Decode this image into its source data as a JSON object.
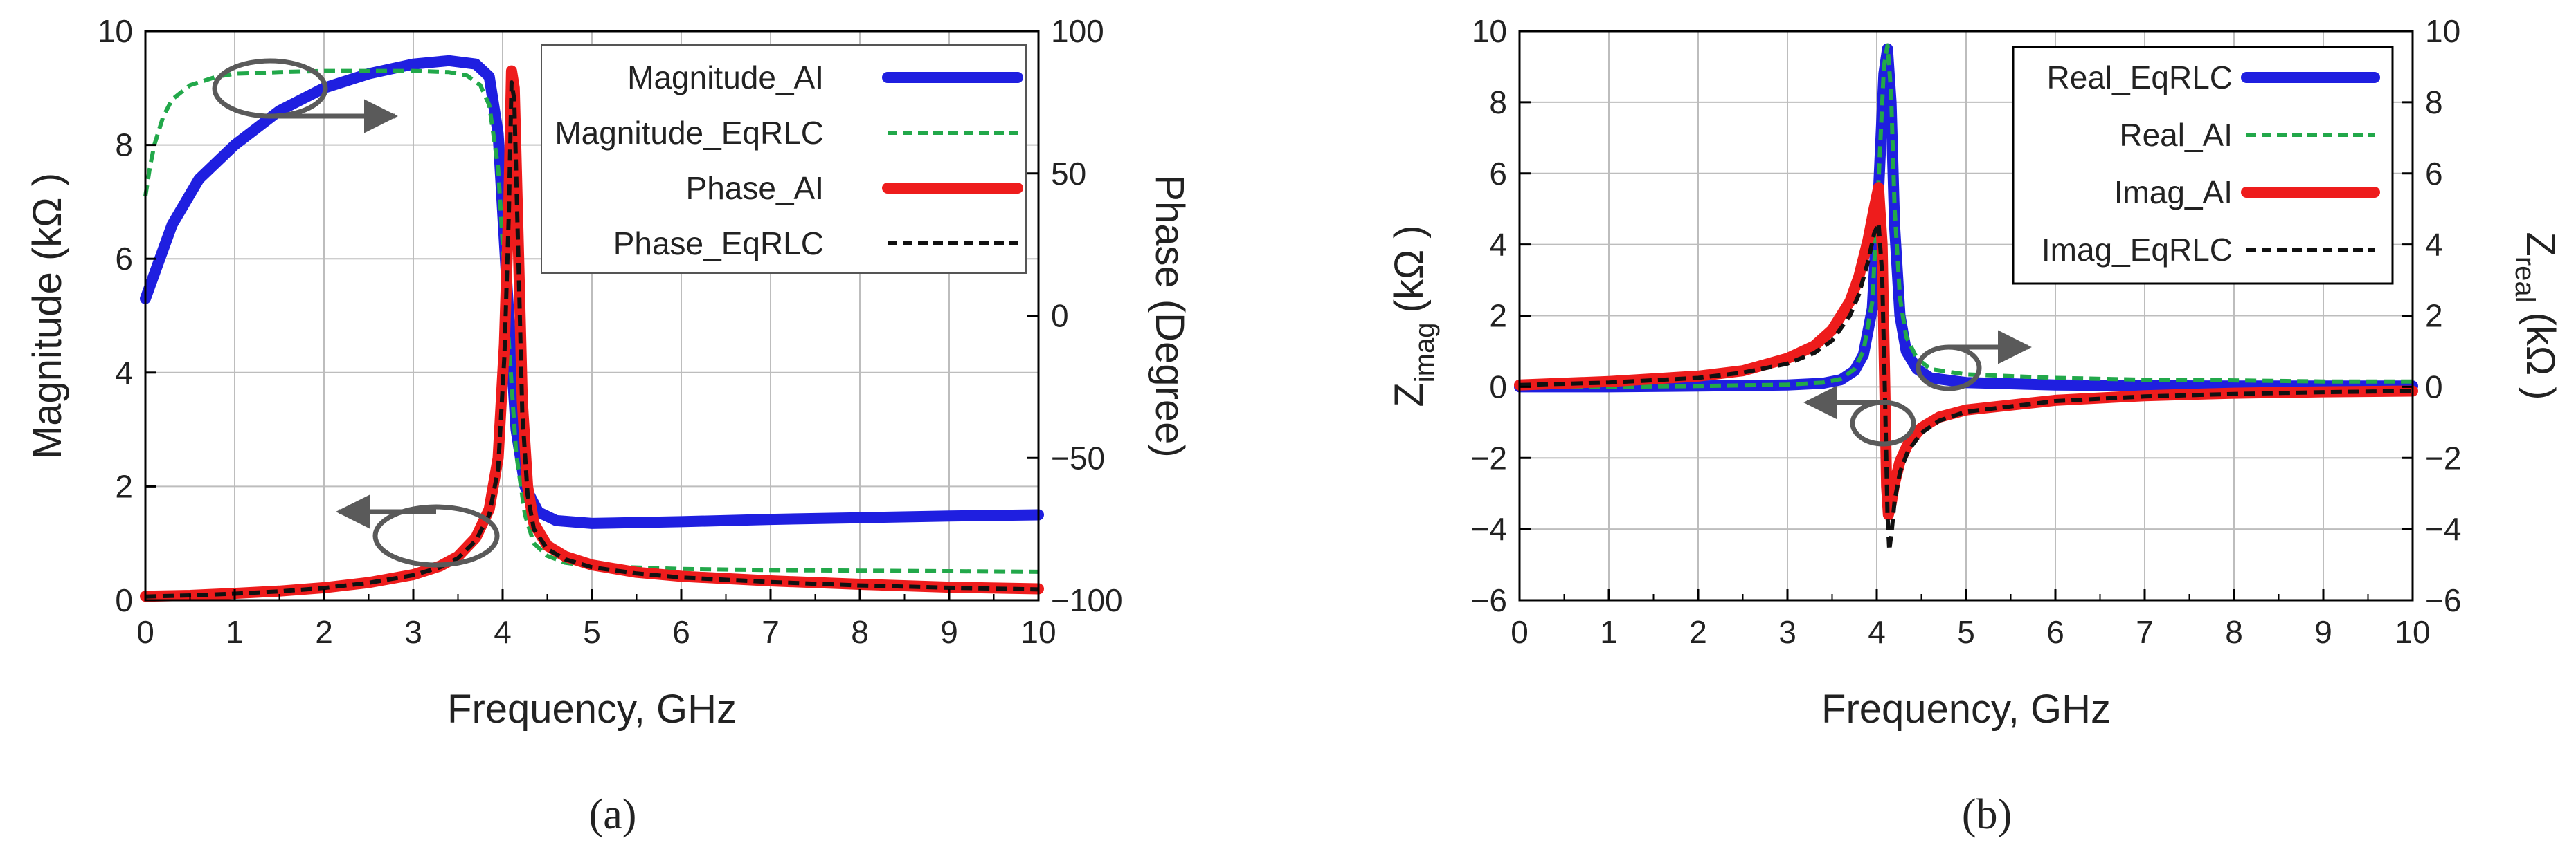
{
  "captions": [
    "(a)",
    "(b)"
  ],
  "chart_data": [
    {
      "type": "line",
      "panel": "a",
      "xlabel": "Frequency, GHz",
      "ylabel": "Magnitude (kΩ )",
      "y2label": "Phase (Degree)",
      "xlim": [
        0,
        10
      ],
      "ylim": [
        0,
        10
      ],
      "y2lim": [
        -100,
        100
      ],
      "xticks": [
        "0",
        "1",
        "2",
        "3",
        "4",
        "5",
        "6",
        "7",
        "8",
        "9",
        "10"
      ],
      "yticks": [
        "0",
        "2",
        "4",
        "6",
        "8",
        "10"
      ],
      "y2ticks": [
        "−100",
        "−50",
        "0",
        "50",
        "100"
      ],
      "grid": true,
      "legend_position": "top-right",
      "series": [
        {
          "name": "Magnitude_AI",
          "axis": "left",
          "color": "#1f1fe0",
          "style": "solid",
          "width": 16,
          "x": [
            0,
            0.3,
            0.6,
            1,
            1.5,
            2,
            2.5,
            3,
            3.4,
            3.7,
            3.85,
            3.95,
            4.05,
            4.15,
            4.25,
            4.4,
            4.6,
            5,
            6,
            7,
            8,
            9,
            10
          ],
          "y": [
            5.3,
            6.6,
            7.4,
            8.0,
            8.6,
            9.0,
            9.25,
            9.42,
            9.48,
            9.42,
            9.2,
            8.2,
            5.5,
            3.0,
            2.0,
            1.55,
            1.4,
            1.35,
            1.38,
            1.42,
            1.45,
            1.48,
            1.5
          ]
        },
        {
          "name": "Magnitude_EqRLC",
          "axis": "left",
          "color": "#22a84a",
          "style": "dashed",
          "width": 6,
          "x": [
            0,
            0.05,
            0.1,
            0.2,
            0.3,
            0.5,
            0.8,
            1,
            1.5,
            2,
            2.5,
            3,
            3.4,
            3.6,
            3.75,
            3.85,
            3.95,
            4.05,
            4.15,
            4.25,
            4.35,
            4.5,
            4.7,
            5,
            6,
            7,
            8,
            9,
            10
          ],
          "y": [
            7.1,
            7.6,
            8.0,
            8.5,
            8.8,
            9.05,
            9.2,
            9.25,
            9.28,
            9.3,
            9.3,
            9.3,
            9.28,
            9.22,
            9.05,
            8.7,
            7.6,
            5.0,
            2.6,
            1.5,
            1.0,
            0.78,
            0.66,
            0.6,
            0.55,
            0.53,
            0.52,
            0.51,
            0.5
          ]
        },
        {
          "name": "Phase_AI",
          "axis": "right",
          "color": "#ee1c1c",
          "style": "solid",
          "width": 16,
          "x": [
            0,
            0.5,
            1,
            1.5,
            2,
            2.5,
            3,
            3.3,
            3.5,
            3.7,
            3.85,
            3.95,
            4.02,
            4.07,
            4.1,
            4.13,
            4.18,
            4.22,
            4.28,
            4.35,
            4.5,
            4.7,
            5,
            5.5,
            6,
            7,
            8,
            9,
            10
          ],
          "y": [
            -98.6,
            -98.3,
            -97.6,
            -96.8,
            -95.6,
            -93.8,
            -91.0,
            -88.0,
            -84.6,
            -78.0,
            -68.0,
            -50.0,
            -10.0,
            40.0,
            86.0,
            80.0,
            20.0,
            -30.0,
            -60.0,
            -73.0,
            -80.8,
            -84.6,
            -87.6,
            -90.2,
            -91.6,
            -93.2,
            -94.4,
            -95.4,
            -96.0
          ]
        },
        {
          "name": "Phase_EqRLC",
          "axis": "right",
          "color": "#111111",
          "style": "dashed",
          "width": 6,
          "x": [
            0,
            0.5,
            1,
            1.5,
            2,
            2.5,
            3,
            3.3,
            3.5,
            3.7,
            3.85,
            3.95,
            4.02,
            4.07,
            4.1,
            4.13,
            4.18,
            4.22,
            4.28,
            4.35,
            4.5,
            4.7,
            5,
            5.5,
            6,
            7,
            8,
            9,
            10
          ],
          "y": [
            -98.7,
            -98.3,
            -97.7,
            -96.9,
            -95.7,
            -93.9,
            -91.2,
            -88.4,
            -85.2,
            -79.0,
            -70.0,
            -54.0,
            -14.0,
            36.0,
            82.0,
            76.0,
            16.0,
            -34.0,
            -63.0,
            -75.0,
            -82.0,
            -85.6,
            -88.4,
            -90.6,
            -92.0,
            -93.6,
            -94.8,
            -95.6,
            -96.2
          ]
        }
      ]
    },
    {
      "type": "line",
      "panel": "b",
      "xlabel": "Frequency, GHz",
      "ylabel_main": "Z",
      "ylabel_sub": "imag",
      "ylabel_unit": "(kΩ )",
      "y2label_main": "Z",
      "y2label_sub": "real",
      "y2label_unit": "(kΩ )",
      "xlim": [
        0,
        10
      ],
      "ylim": [
        -6,
        10
      ],
      "y2lim": [
        -6,
        10
      ],
      "xticks": [
        "0",
        "1",
        "2",
        "3",
        "4",
        "5",
        "6",
        "7",
        "8",
        "9",
        "10"
      ],
      "yticks": [
        "−6",
        "−4",
        "−2",
        "0",
        "2",
        "4",
        "6",
        "8",
        "10"
      ],
      "y2ticks": [
        "−6",
        "−4",
        "−2",
        "0",
        "2",
        "4",
        "6",
        "8",
        "10"
      ],
      "grid": true,
      "legend_position": "top-right",
      "series": [
        {
          "name": "Real_EqRLC",
          "axis": "right",
          "color": "#1f1fe0",
          "style": "solid",
          "width": 16,
          "x": [
            0,
            1,
            2,
            3,
            3.4,
            3.6,
            3.75,
            3.85,
            3.95,
            4.02,
            4.08,
            4.12,
            4.16,
            4.2,
            4.26,
            4.33,
            4.45,
            4.6,
            5,
            6,
            7,
            8,
            9,
            10
          ],
          "y": [
            0.0,
            0.0,
            0.02,
            0.05,
            0.1,
            0.2,
            0.45,
            0.9,
            2.2,
            5.5,
            8.8,
            9.5,
            8.0,
            4.5,
            2.0,
            1.0,
            0.5,
            0.25,
            0.12,
            0.05,
            0.03,
            0.02,
            0.02,
            0.02
          ]
        },
        {
          "name": "Real_AI",
          "axis": "right",
          "color": "#22a84a",
          "style": "dashed",
          "width": 6,
          "x": [
            0,
            1,
            2,
            3,
            3.4,
            3.6,
            3.75,
            3.85,
            3.95,
            4.02,
            4.08,
            4.12,
            4.16,
            4.2,
            4.26,
            4.33,
            4.45,
            4.6,
            5,
            6,
            7,
            8,
            9,
            10
          ],
          "y": [
            0.0,
            0.0,
            0.02,
            0.06,
            0.12,
            0.22,
            0.5,
            1.0,
            2.4,
            5.8,
            9.0,
            9.6,
            8.3,
            5.0,
            2.5,
            1.4,
            0.8,
            0.5,
            0.35,
            0.25,
            0.2,
            0.18,
            0.15,
            0.15
          ]
        },
        {
          "name": "Imag_AI",
          "axis": "left",
          "color": "#ee1c1c",
          "style": "solid",
          "width": 16,
          "x": [
            0,
            1,
            2,
            2.5,
            3,
            3.3,
            3.5,
            3.7,
            3.8,
            3.9,
            3.97,
            4.02,
            4.06,
            4.09,
            4.11,
            4.13,
            4.16,
            4.2,
            4.26,
            4.35,
            4.5,
            4.7,
            5,
            6,
            7,
            8,
            9,
            10
          ],
          "y": [
            0.05,
            0.15,
            0.3,
            0.45,
            0.8,
            1.15,
            1.6,
            2.4,
            3.1,
            4.1,
            5.0,
            5.6,
            4.0,
            0.0,
            -2.8,
            -3.6,
            -3.3,
            -2.7,
            -2.1,
            -1.6,
            -1.15,
            -0.85,
            -0.65,
            -0.38,
            -0.25,
            -0.18,
            -0.14,
            -0.12
          ]
        },
        {
          "name": "Imag_EqRLC",
          "axis": "left",
          "color": "#111111",
          "style": "dashed",
          "width": 6,
          "x": [
            0,
            1,
            2,
            2.5,
            3,
            3.3,
            3.5,
            3.7,
            3.8,
            3.9,
            3.97,
            4.02,
            4.06,
            4.09,
            4.12,
            4.14,
            4.17,
            4.2,
            4.26,
            4.35,
            4.5,
            4.7,
            5,
            6,
            7,
            8,
            9,
            10
          ],
          "y": [
            0.05,
            0.12,
            0.25,
            0.4,
            0.65,
            0.95,
            1.3,
            2.0,
            2.6,
            3.5,
            4.3,
            4.6,
            3.2,
            0.0,
            -3.6,
            -4.6,
            -4.0,
            -3.2,
            -2.4,
            -1.8,
            -1.3,
            -0.95,
            -0.7,
            -0.4,
            -0.27,
            -0.2,
            -0.15,
            -0.12
          ]
        }
      ]
    }
  ]
}
